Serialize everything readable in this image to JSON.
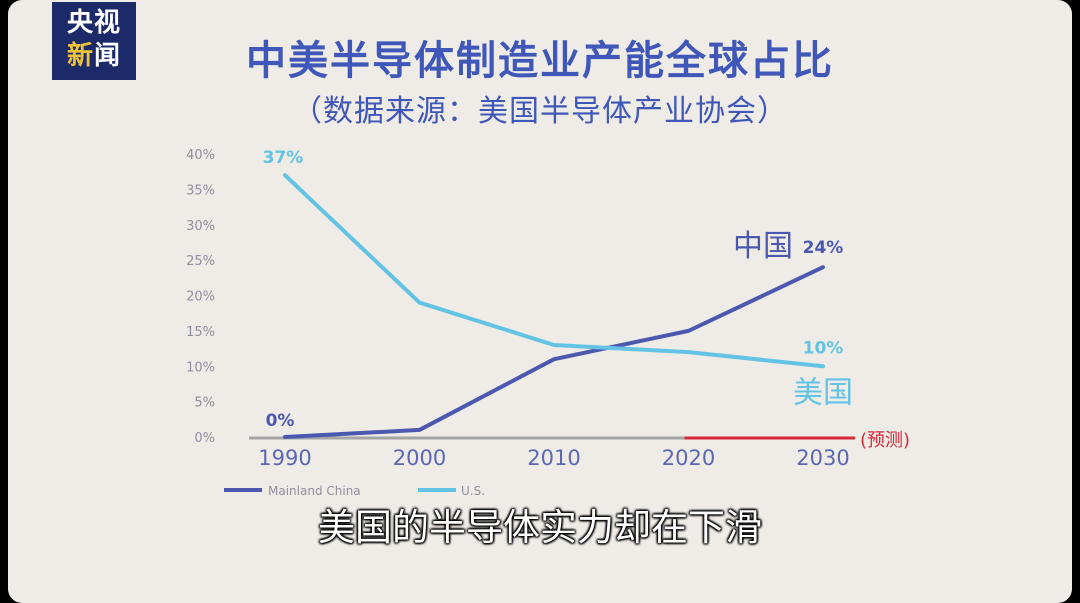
{
  "logo": {
    "line1": "央视",
    "line2_a": "新",
    "line2_b": "闻"
  },
  "title": "中美半导体制造业产能全球占比",
  "subtitle": "（数据来源：美国半导体产业协会）",
  "caption": "美国的半导体实力却在下滑",
  "forecast_label": "(预测)",
  "colors": {
    "china": "#4b58b0",
    "us": "#62c3e5",
    "forecast": "#d62a3a",
    "axis": "#a5a5a5"
  },
  "chart_data": {
    "type": "line",
    "x": [
      1990,
      2000,
      2010,
      2020,
      2030
    ],
    "xticks": [
      "1990",
      "2000",
      "2010",
      "2020",
      "2030"
    ],
    "ylim": [
      0,
      40
    ],
    "yticks": [
      "0%",
      "5%",
      "10%",
      "15%",
      "20%",
      "25%",
      "30%",
      "35%",
      "40%"
    ],
    "grid": false,
    "legend_position": "bottom-left",
    "series": [
      {
        "name": "Mainland China",
        "values": [
          0,
          1,
          11,
          15,
          24
        ]
      },
      {
        "name": "U.S.",
        "values": [
          37,
          19,
          13,
          12,
          10
        ]
      }
    ],
    "annotations": {
      "us_start": "37%",
      "us_end": "10%",
      "china_start": "0%",
      "china_end": "24%",
      "china_label": "中国",
      "us_label": "美国"
    }
  }
}
